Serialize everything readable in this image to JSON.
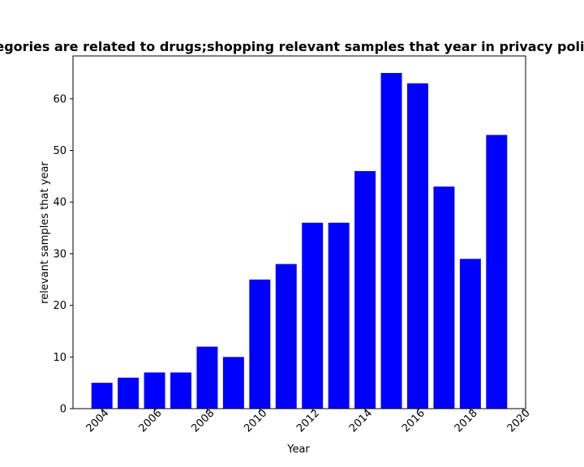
{
  "chart_data": {
    "type": "bar",
    "title": "Categories are related to drugs;shopping relevant samples that year in privacy policies",
    "xlabel": "Year",
    "ylabel": "relevant samples that year",
    "x": [
      2004,
      2005,
      2006,
      2007,
      2008,
      2009,
      2010,
      2011,
      2012,
      2013,
      2014,
      2015,
      2016,
      2017,
      2018,
      2019
    ],
    "values": [
      5,
      6,
      7,
      7,
      12,
      10,
      25,
      28,
      36,
      36,
      46,
      65,
      63,
      43,
      29,
      53
    ],
    "xlim": [
      2002.9,
      2020.1
    ],
    "ylim": [
      0,
      68.3
    ],
    "xticks": [
      2004,
      2006,
      2008,
      2010,
      2012,
      2014,
      2016,
      2018,
      2020
    ],
    "yticks": [
      0,
      10,
      20,
      30,
      40,
      50,
      60
    ],
    "bar_color": "#0000ff",
    "grid": false,
    "legend": null
  }
}
